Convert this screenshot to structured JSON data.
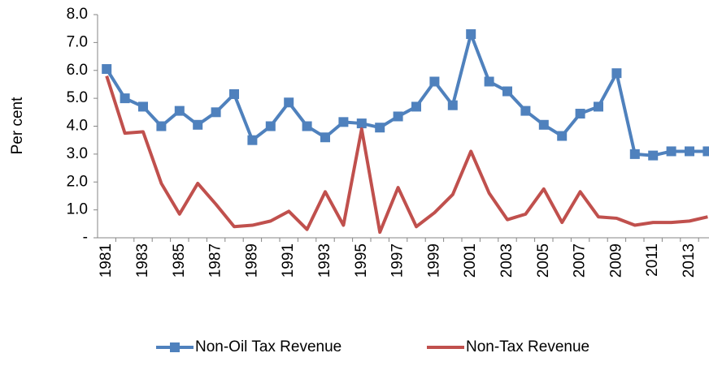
{
  "chart_data": {
    "type": "line",
    "y_label": "Per cent",
    "categories": [
      "1981",
      null,
      "1983",
      null,
      "1985",
      null,
      "1987",
      null,
      "1989",
      null,
      "1991",
      null,
      "1993",
      null,
      "1995",
      null,
      "1997",
      null,
      "1999",
      null,
      "2001",
      null,
      "2003",
      null,
      "2005",
      null,
      "2007",
      null,
      "2009",
      null,
      "2011",
      null,
      "2013",
      null
    ],
    "series": [
      {
        "name": "Non-Oil Tax Revenue",
        "color": "#4f81bd",
        "marker": "square",
        "values": [
          6.05,
          5.0,
          4.7,
          4.0,
          4.55,
          4.05,
          4.5,
          5.15,
          3.5,
          4.0,
          4.85,
          4.0,
          3.6,
          4.15,
          4.1,
          3.95,
          4.35,
          4.7,
          5.6,
          4.75,
          7.3,
          5.6,
          5.25,
          4.55,
          4.05,
          3.65,
          4.45,
          4.7,
          5.9,
          3.0,
          2.95,
          3.1,
          3.1,
          3.1
        ]
      },
      {
        "name": "Non-Tax Revenue",
        "color": "#c0504d",
        "values": [
          5.8,
          3.75,
          3.8,
          1.95,
          0.85,
          1.95,
          1.2,
          0.4,
          0.45,
          0.6,
          0.95,
          0.3,
          1.65,
          0.45,
          3.9,
          0.2,
          1.8,
          0.4,
          0.9,
          1.55,
          3.1,
          1.6,
          0.65,
          0.85,
          1.75,
          0.55,
          1.65,
          0.75,
          0.7,
          0.45,
          0.55,
          0.55,
          0.6,
          0.75
        ]
      }
    ],
    "ylim": [
      0,
      8
    ],
    "yticks": [
      {
        "value": 0,
        "label": "-"
      },
      {
        "value": 1,
        "label": "1.0"
      },
      {
        "value": 2,
        "label": "2.0"
      },
      {
        "value": 3,
        "label": "3.0"
      },
      {
        "value": 4,
        "label": "4.0"
      },
      {
        "value": 5,
        "label": "5.0"
      },
      {
        "value": 6,
        "label": "6.0"
      },
      {
        "value": 7,
        "label": "7.0"
      },
      {
        "value": 8,
        "label": "8.0"
      }
    ],
    "grid": false,
    "legend": "bottom"
  }
}
